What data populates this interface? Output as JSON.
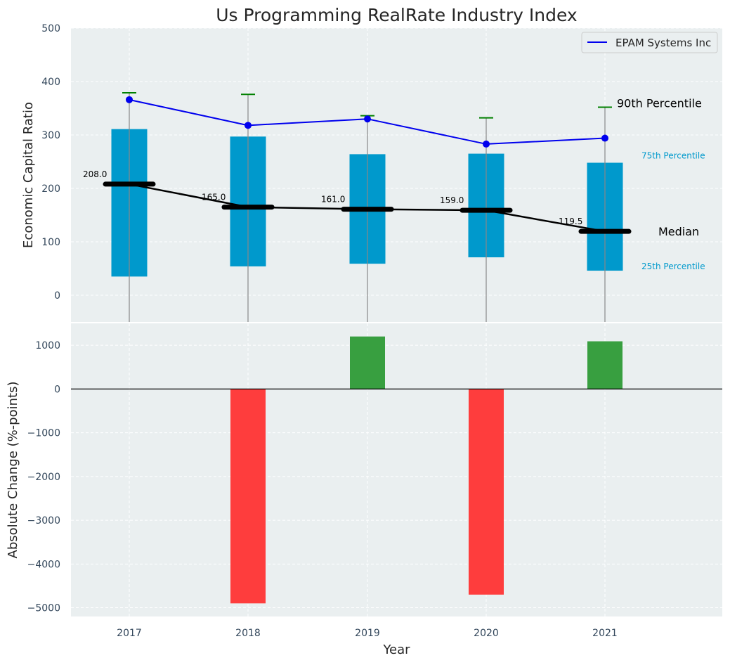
{
  "chart_data": [
    {
      "type": "box",
      "title": "Us Programming RealRate Industry Index",
      "ylabel": "Economic Capital Ratio",
      "ylim": [
        -50,
        500
      ],
      "yticks": [
        0,
        100,
        200,
        300,
        400,
        500
      ],
      "categories": [
        "2017",
        "2018",
        "2019",
        "2020",
        "2021"
      ],
      "grid": true,
      "legend": {
        "position": "top-right",
        "entries": [
          "EPAM Systems Inc"
        ]
      },
      "p25": [
        35,
        54,
        59,
        71,
        46
      ],
      "p75": [
        311,
        297,
        264,
        265,
        248
      ],
      "p90": [
        379,
        376,
        336,
        332,
        352
      ],
      "median": [
        208.0,
        165.0,
        161.0,
        159.0,
        119.5
      ],
      "median_labels": [
        "208.0",
        "165.0",
        "161.0",
        "159.0",
        "119.5"
      ],
      "series": [
        {
          "name": "EPAM Systems Inc",
          "values": [
            366,
            318,
            330,
            283,
            294
          ],
          "color": "#0000ee"
        }
      ],
      "annotations": {
        "p90": "90th Percentile",
        "p75": "75th Percentile",
        "median": "Median",
        "p25": "25th Percentile"
      },
      "colors": {
        "box": "#0099cc",
        "median": "#000000",
        "whisker_cap": "#008000",
        "whisker": "#888888"
      }
    },
    {
      "type": "bar",
      "ylabel": "Absolute Change (%-points)",
      "xlabel": "Year",
      "ylim": [
        -5200,
        1500
      ],
      "yticks": [
        1000,
        0,
        -1000,
        -2000,
        -3000,
        -4000,
        -5000
      ],
      "ytick_labels": [
        "1000",
        "0",
        "−1000",
        "−2000",
        "−3000",
        "−4000",
        "−5000"
      ],
      "categories": [
        "2017",
        "2018",
        "2019",
        "2020",
        "2021"
      ],
      "values": [
        0,
        -4900,
        1200,
        -4700,
        1090
      ],
      "colors": {
        "positive": "#2e9a36",
        "negative": "#ff3333"
      }
    }
  ]
}
